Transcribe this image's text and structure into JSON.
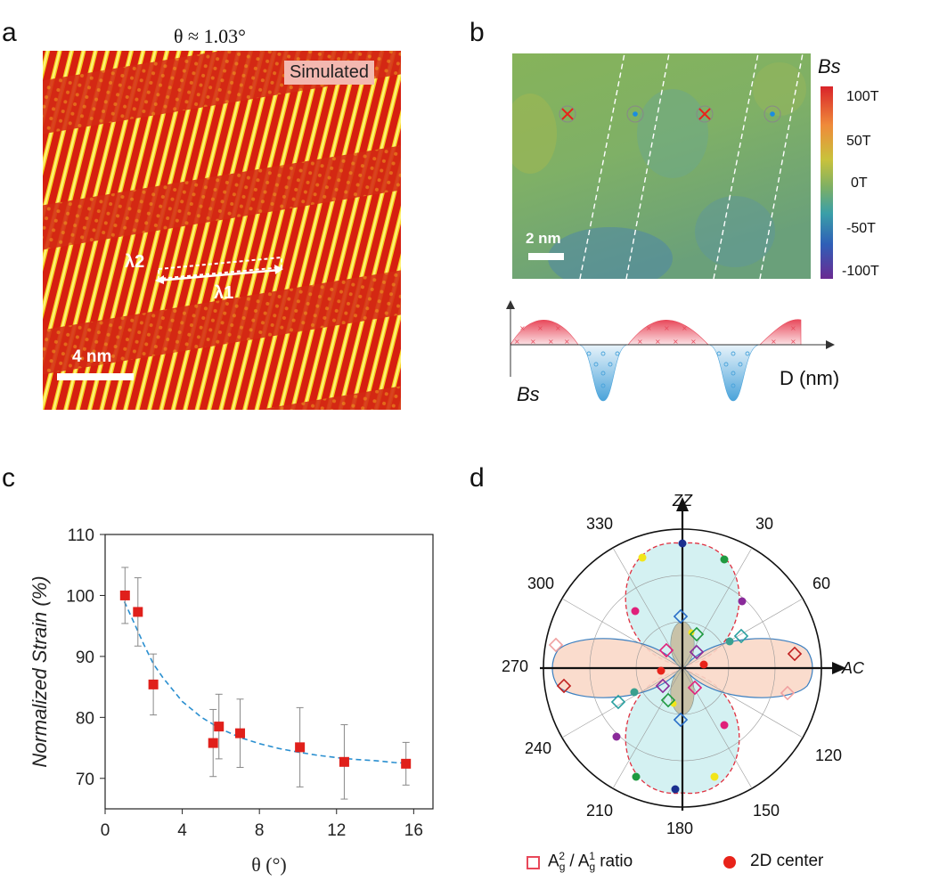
{
  "panels": {
    "a": {
      "letter": "a",
      "title": "θ ≈ 1.03°",
      "badge": "Simulated",
      "scalebar": "4 nm",
      "lambda1": "λ1",
      "lambda2": "λ2"
    },
    "b": {
      "letter": "b",
      "colorbar_title": "Bs",
      "colorbar_ticks": [
        "100T",
        "50T",
        "0T",
        "-50T",
        "-100T"
      ],
      "scalebar": "2 nm",
      "profile_ylabel": "Bs",
      "profile_xlabel": "D (nm)"
    },
    "c": {
      "letter": "c",
      "xlabel": "θ (°)",
      "ylabel": "Normalized Strain (%)",
      "chart_data": {
        "type": "scatter",
        "x": [
          1.03,
          1.7,
          2.5,
          5.6,
          5.9,
          7.0,
          10.1,
          12.4,
          15.6
        ],
        "y": [
          100.0,
          97.3,
          85.4,
          75.8,
          78.5,
          77.4,
          75.1,
          72.7,
          72.4
        ],
        "err": [
          4.6,
          5.6,
          5.0,
          5.5,
          5.3,
          5.6,
          6.5,
          6.1,
          3.5
        ],
        "fit_x": [
          1.0,
          1.5,
          2,
          2.5,
          3,
          4,
          5,
          6,
          7,
          8,
          9,
          10,
          11,
          12,
          13,
          14,
          15,
          15.6
        ],
        "fit_y": [
          99.0,
          95.5,
          92.0,
          88.8,
          86.5,
          82.6,
          80.0,
          78.1,
          76.7,
          75.7,
          74.9,
          74.3,
          73.8,
          73.4,
          73.1,
          72.9,
          72.6,
          72.5
        ],
        "xlim": [
          0,
          17
        ],
        "ylim": [
          65,
          110
        ],
        "xticks": [
          "0",
          "4",
          "8",
          "12",
          "16"
        ],
        "yticks": [
          "70",
          "80",
          "90",
          "100",
          "110"
        ],
        "marker_color": "#e0201b",
        "fit_color": "#2a8fd0"
      }
    },
    "d": {
      "letter": "d",
      "axis_top": "ZZ",
      "axis_right": "AC",
      "angle_labels": [
        "330",
        "30",
        "300",
        "60",
        "270",
        "240",
        "120",
        "210",
        "180",
        "150"
      ],
      "legend_square": "A g 2 / A g 1 ratio",
      "legend_square_parts": {
        "a": "A",
        "g1": "g",
        "sup1": "2",
        "slash": " / ",
        "a2": "A",
        "g2": "g",
        "sup2": "1",
        "ratio": " ratio"
      },
      "legend_dot": "2D center"
    }
  }
}
